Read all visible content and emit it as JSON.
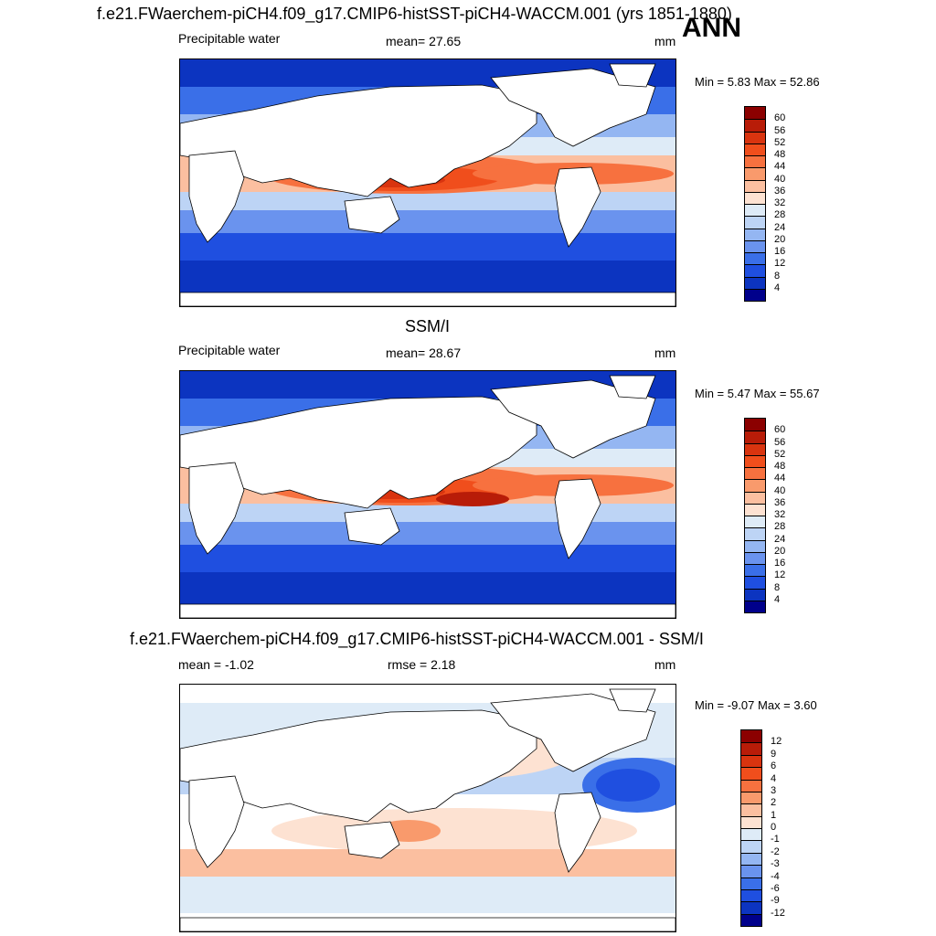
{
  "header": {
    "title": "f.e21.FWaerchem-piCH4.f09_g17.CMIP6-histSST-piCH4-WACCM.001 (yrs 1851-1880)",
    "season": "ANN"
  },
  "panels": [
    {
      "id": "model",
      "panel_title": "",
      "left_label": "Precipitable water",
      "center_label": "mean=  27.65",
      "units": "mm",
      "minmax": "Min =   5.83 Max =  52.86",
      "colorbar_labels": [
        "60",
        "56",
        "52",
        "48",
        "44",
        "40",
        "36",
        "32",
        "28",
        "24",
        "20",
        "16",
        "12",
        "8",
        "4"
      ],
      "colorbar_colors": [
        "#8b0000",
        "#b81c08",
        "#d9340f",
        "#f04e1c",
        "#f7713f",
        "#f99a6c",
        "#fbbfa0",
        "#fde2d2",
        "#deebf7",
        "#bdd4f5",
        "#94b6f2",
        "#6a93ee",
        "#3a6fe8",
        "#1f4fe0",
        "#0c34c0",
        "#00008b"
      ]
    },
    {
      "id": "obs",
      "panel_title": "SSM/I",
      "left_label": "Precipitable water",
      "center_label": "mean=  28.67",
      "units": "mm",
      "minmax": "Min =   5.47 Max =  55.67",
      "colorbar_labels": [
        "60",
        "56",
        "52",
        "48",
        "44",
        "40",
        "36",
        "32",
        "28",
        "24",
        "20",
        "16",
        "12",
        "8",
        "4"
      ],
      "colorbar_colors": [
        "#8b0000",
        "#b81c08",
        "#d9340f",
        "#f04e1c",
        "#f7713f",
        "#f99a6c",
        "#fbbfa0",
        "#fde2d2",
        "#deebf7",
        "#bdd4f5",
        "#94b6f2",
        "#6a93ee",
        "#3a6fe8",
        "#1f4fe0",
        "#0c34c0",
        "#00008b"
      ]
    },
    {
      "id": "diff",
      "panel_title": "f.e21.FWaerchem-piCH4.f09_g17.CMIP6-histSST-piCH4-WACCM.001 - SSM/I",
      "left_label": "mean =  -1.02",
      "center_label": "rmse =   2.18",
      "units": "mm",
      "minmax": "Min =  -9.07 Max =   3.60",
      "colorbar_labels": [
        "12",
        "9",
        "6",
        "4",
        "3",
        "2",
        "1",
        "0",
        "-1",
        "-2",
        "-3",
        "-4",
        "-6",
        "-9",
        "-12"
      ],
      "colorbar_colors": [
        "#8b0000",
        "#b81c08",
        "#d9340f",
        "#f04e1c",
        "#f7713f",
        "#f99a6c",
        "#fbbfa0",
        "#fde2d2",
        "#deebf7",
        "#bdd4f5",
        "#94b6f2",
        "#6a93ee",
        "#3a6fe8",
        "#1f4fe0",
        "#0c34c0",
        "#00008b"
      ]
    }
  ]
}
